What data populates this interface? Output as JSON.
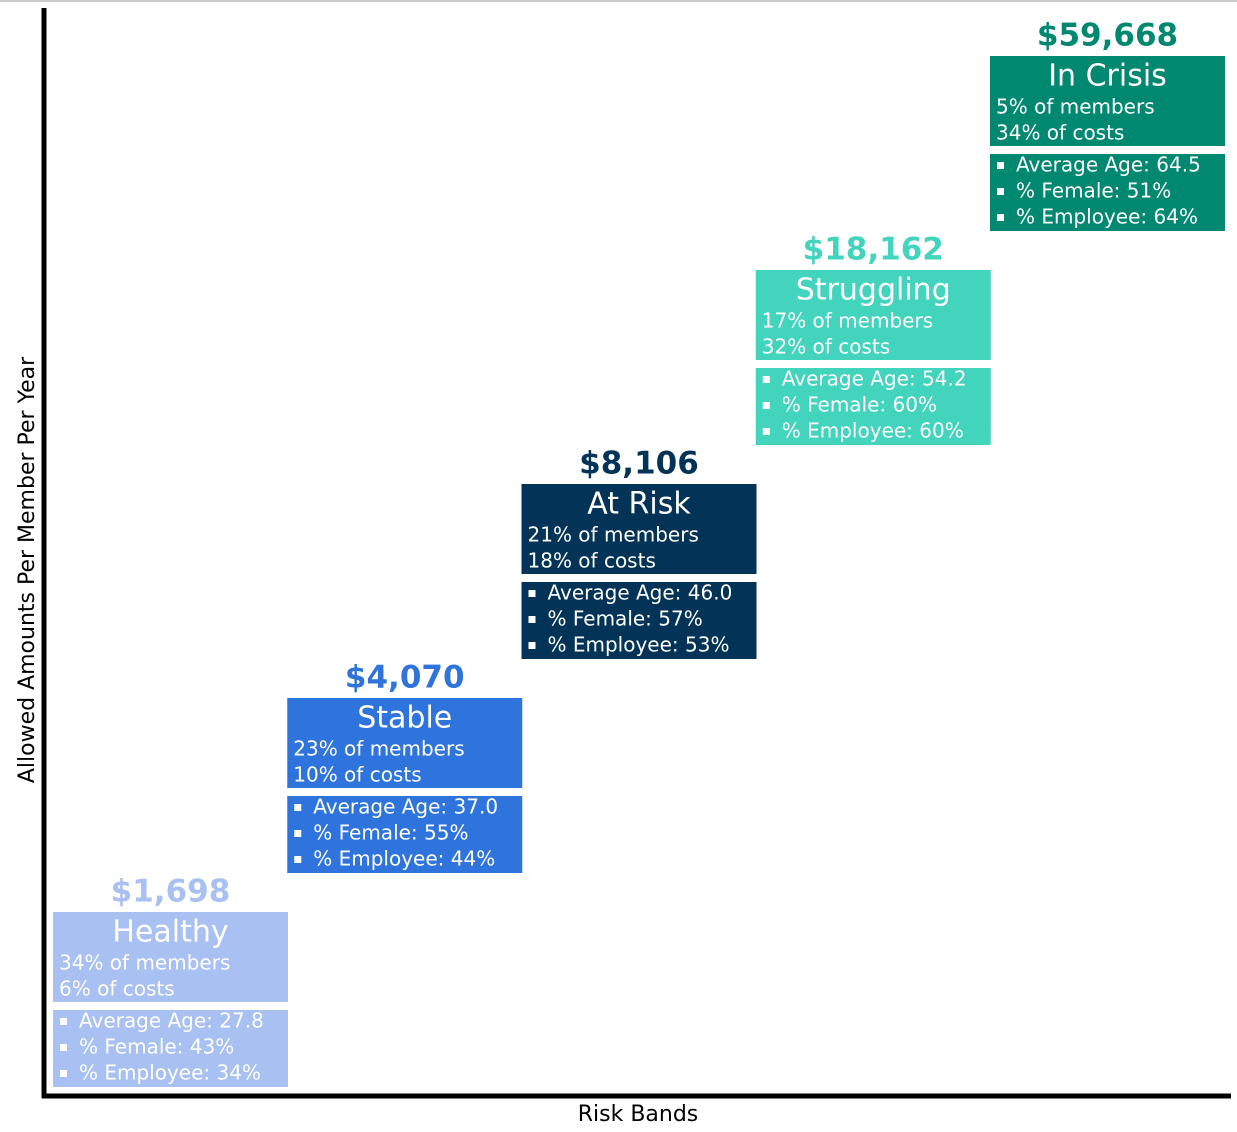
{
  "y_axis_label": "Allowed Amounts Per Member Per Year",
  "x_axis_label": "Risk Bands",
  "bands": [
    {
      "amount": "$1,698",
      "name": "Healthy",
      "members": "34% of members",
      "costs": "6% of costs",
      "color": "#a9c0f3",
      "stats": [
        "Average Age: 27.8",
        "% Female: 43%",
        "% Employee: 34%"
      ]
    },
    {
      "amount": "$4,070",
      "name": "Stable",
      "members": "23% of members",
      "costs": "10% of costs",
      "color": "#2f74dc",
      "stats": [
        "Average Age: 37.0",
        "% Female: 55%",
        "% Employee: 44%"
      ]
    },
    {
      "amount": "$8,106",
      "name": "At Risk",
      "members": "21% of members",
      "costs": "18% of costs",
      "color": "#033356",
      "stats": [
        "Average Age: 46.0",
        "% Female: 57%",
        "% Employee: 53%"
      ]
    },
    {
      "amount": "$18,162",
      "name": "Struggling",
      "members": "17% of members",
      "costs": "32% of costs",
      "color": "#42d4bd",
      "stats": [
        "Average Age: 54.2",
        "% Female: 60%",
        "% Employee: 60%"
      ]
    },
    {
      "amount": "$59,668",
      "name": "In Crisis",
      "members": "5% of members",
      "costs": "34% of costs",
      "color": "#008870",
      "stats": [
        "Average Age: 64.5",
        "% Female: 51%",
        "% Employee: 64%"
      ]
    }
  ]
}
